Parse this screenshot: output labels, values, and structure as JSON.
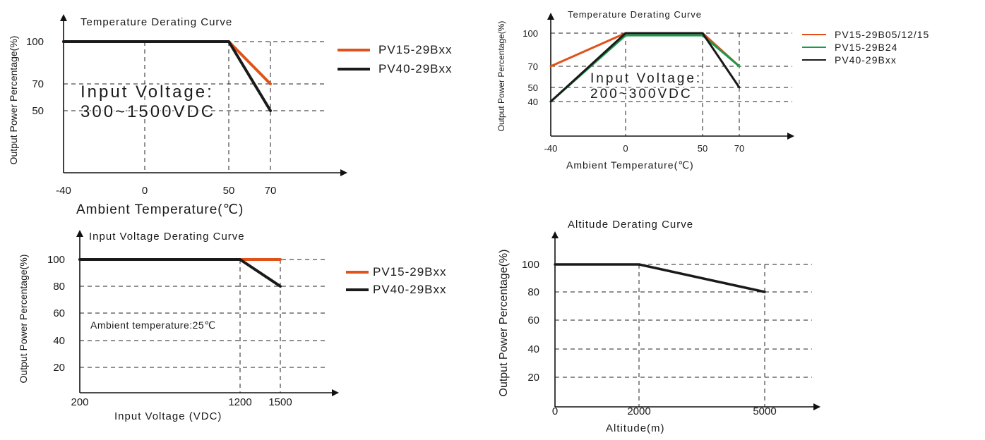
{
  "colors": {
    "orange": "#e0521a",
    "green": "#1a9b4b",
    "black": "#1a1a1a"
  },
  "chart_data": [
    {
      "type": "line",
      "title": "Temperature Derating Curve",
      "xlabel": "Ambient Temperature(℃)",
      "ylabel": "Output Power Percentage(%)",
      "x_ticks": [
        "-40",
        "0",
        "50",
        "70"
      ],
      "y_ticks": [
        "100",
        "70",
        "50"
      ],
      "xlim": [
        -40,
        90
      ],
      "ylim": [
        0,
        110
      ],
      "annotation": [
        "Input Voltage:",
        "300~1500VDC"
      ],
      "legend_position": "right",
      "series": [
        {
          "name": "PV15-29Bxx",
          "color": "#e0521a",
          "x": [
            -40,
            50,
            70
          ],
          "y": [
            100,
            100,
            70
          ]
        },
        {
          "name": "PV40-29Bxx",
          "color": "#1a1a1a",
          "x": [
            -40,
            50,
            70
          ],
          "y": [
            100,
            100,
            50
          ]
        }
      ]
    },
    {
      "type": "line",
      "title": "Temperature Derating Curve",
      "xlabel": "Ambient Temperature(℃)",
      "ylabel": "Output Power Percentage(%)",
      "x_ticks": [
        "-40",
        "0",
        "50",
        "70"
      ],
      "y_ticks": [
        "100",
        "70",
        "50",
        "40"
      ],
      "xlim": [
        -40,
        90
      ],
      "ylim": [
        0,
        110
      ],
      "annotation": [
        "Input Voltage:",
        "200~300VDC"
      ],
      "legend_position": "right",
      "series": [
        {
          "name": "PV15-29B05/12/15",
          "color": "#e0521a",
          "x": [
            -40,
            0,
            50,
            70
          ],
          "y": [
            70,
            100,
            100,
            70
          ]
        },
        {
          "name": "PV15-29B24",
          "color": "#1a9b4b",
          "x": [
            -40,
            0,
            50,
            70
          ],
          "y": [
            40,
            98,
            98,
            70
          ]
        },
        {
          "name": "PV40-29Bxx",
          "color": "#1a1a1a",
          "x": [
            -40,
            0,
            50,
            70
          ],
          "y": [
            40,
            100,
            100,
            50
          ]
        }
      ]
    },
    {
      "type": "line",
      "title": "Input Voltage Derating Curve",
      "xlabel": "Input Voltage (VDC)",
      "ylabel": "Output Power Percentage(%)",
      "x_ticks": [
        "200",
        "1200",
        "1500"
      ],
      "y_ticks": [
        "100",
        "80",
        "60",
        "40",
        "20"
      ],
      "xlim": [
        200,
        1700
      ],
      "ylim": [
        0,
        110
      ],
      "annotation": [
        "Ambient temperature:25℃"
      ],
      "legend_position": "right",
      "series": [
        {
          "name": "PV15-29Bxx",
          "color": "#e0521a",
          "x": [
            200,
            1200,
            1500
          ],
          "y": [
            100,
            100,
            100
          ]
        },
        {
          "name": "PV40-29Bxx",
          "color": "#1a1a1a",
          "x": [
            200,
            1200,
            1500
          ],
          "y": [
            100,
            100,
            80
          ]
        }
      ]
    },
    {
      "type": "line",
      "title": "Altitude Derating Curve",
      "xlabel": "Altitude(m)",
      "ylabel": "Output Power Percentage(%)",
      "x_ticks": [
        "0",
        "2000",
        "5000"
      ],
      "y_ticks": [
        "100",
        "80",
        "60",
        "40",
        "20"
      ],
      "xlim": [
        0,
        6200
      ],
      "ylim": [
        0,
        115
      ],
      "legend_position": "none",
      "series": [
        {
          "x": [
            0,
            2000,
            5000
          ],
          "y": [
            100,
            100,
            80
          ],
          "color": "#1a1a1a"
        }
      ]
    }
  ]
}
